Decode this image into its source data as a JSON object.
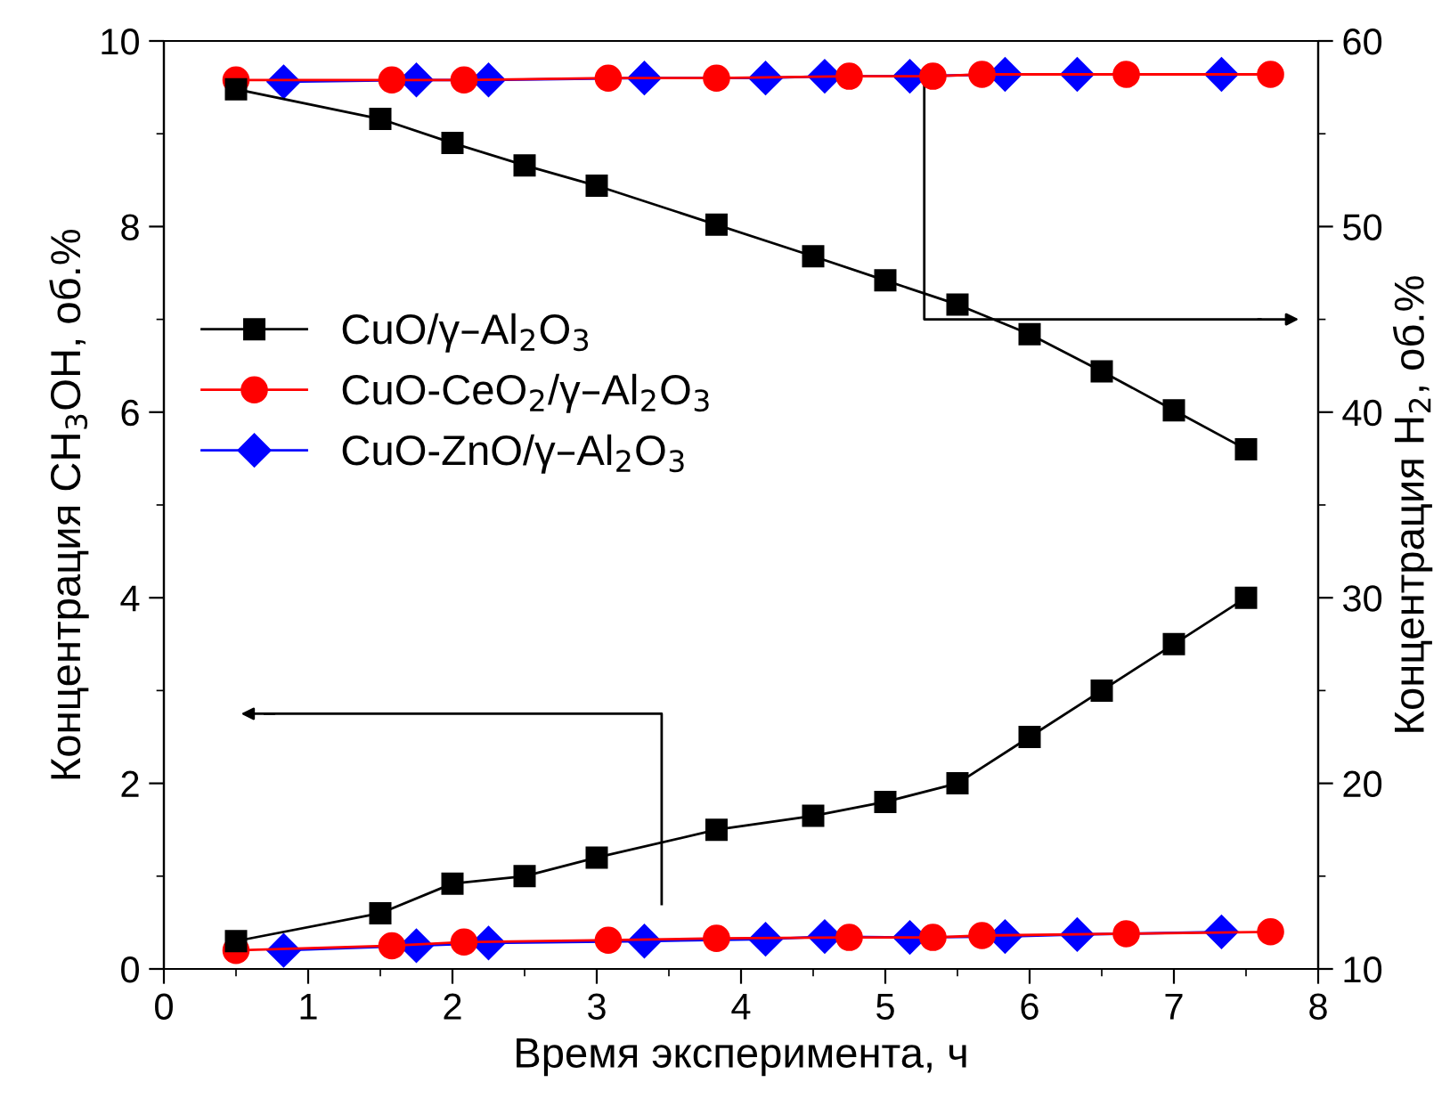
{
  "chart_data": {
    "type": "line",
    "xlabel": "Время эксперимента, ч",
    "ylabel": "Концентрация CH$_{3}$OH, об.%",
    "y2label": "Концентрация H$_{2}$, об.%",
    "xlim": [
      0,
      8
    ],
    "xticks": [
      0,
      1,
      2,
      3,
      4,
      5,
      6,
      7,
      8
    ],
    "ylim": [
      0,
      10
    ],
    "yticks": [
      0,
      2,
      4,
      6,
      8,
      10
    ],
    "y2lim": [
      10,
      60
    ],
    "y2ticks": [
      10,
      20,
      30,
      40,
      50,
      60
    ],
    "legend": "left",
    "grid": false,
    "series": [
      {
        "name": "CuO/γ–Al$_{2}$O$_{3}$",
        "color": "#000000",
        "marker": "square",
        "x": [
          0.5,
          1.5,
          2,
          2.5,
          3,
          3.83,
          4.5,
          5,
          5.5,
          6,
          6.5,
          7,
          7.5
        ],
        "values": [
          0.3,
          0.6,
          0.92,
          1.0,
          1.2,
          1.5,
          1.65,
          1.8,
          2.0,
          2.5,
          3.0,
          3.5,
          4.0
        ]
      },
      {
        "name": "CuO-CeO$_{2}$/γ–Al$_{2}$O$_{3}$",
        "color": "#ff0000",
        "marker": "circle",
        "x": [
          0.5,
          1.58,
          2.08,
          3.08,
          3.83,
          4.75,
          5.33,
          5.67,
          6.67,
          7.67
        ],
        "values": [
          0.2,
          0.25,
          0.29,
          0.31,
          0.33,
          0.34,
          0.34,
          0.36,
          0.38,
          0.4
        ]
      },
      {
        "name": "CuO-ZnO/γ–Al$_{2}$O$_{3}$",
        "color": "#0000ff",
        "marker": "diamond",
        "x": [
          0.83,
          1.75,
          2.25,
          3.33,
          4.17,
          4.58,
          5.17,
          5.83,
          6.33,
          7.33
        ],
        "values": [
          0.2,
          0.25,
          0.28,
          0.3,
          0.32,
          0.35,
          0.34,
          0.35,
          0.37,
          0.4
        ]
      },
      {
        "axis": "y2",
        "color": "#000000",
        "marker": "square",
        "x": [
          0.5,
          1.5,
          2,
          2.5,
          3,
          3.83,
          4.5,
          5,
          5.5,
          6,
          6.5,
          7,
          7.5
        ],
        "values": [
          57.4,
          55.8,
          54.5,
          53.3,
          52.2,
          50.1,
          48.4,
          47.1,
          45.8,
          44.2,
          42.2,
          40.1,
          38.0
        ]
      },
      {
        "axis": "y2",
        "color": "#ff0000",
        "marker": "circle",
        "x": [
          0.5,
          1.58,
          2.08,
          3.08,
          3.83,
          4.75,
          5.33,
          5.67,
          6.67,
          7.67
        ],
        "values": [
          57.9,
          57.9,
          57.9,
          58.0,
          58.0,
          58.1,
          58.1,
          58.2,
          58.2,
          58.2
        ]
      },
      {
        "axis": "y2",
        "color": "#0000ff",
        "marker": "diamond",
        "x": [
          0.83,
          1.75,
          2.25,
          3.33,
          4.17,
          4.58,
          5.17,
          5.83,
          6.33,
          7.33
        ],
        "values": [
          57.8,
          57.9,
          57.9,
          58.0,
          58.0,
          58.1,
          58.1,
          58.2,
          58.2,
          58.2
        ]
      }
    ]
  }
}
